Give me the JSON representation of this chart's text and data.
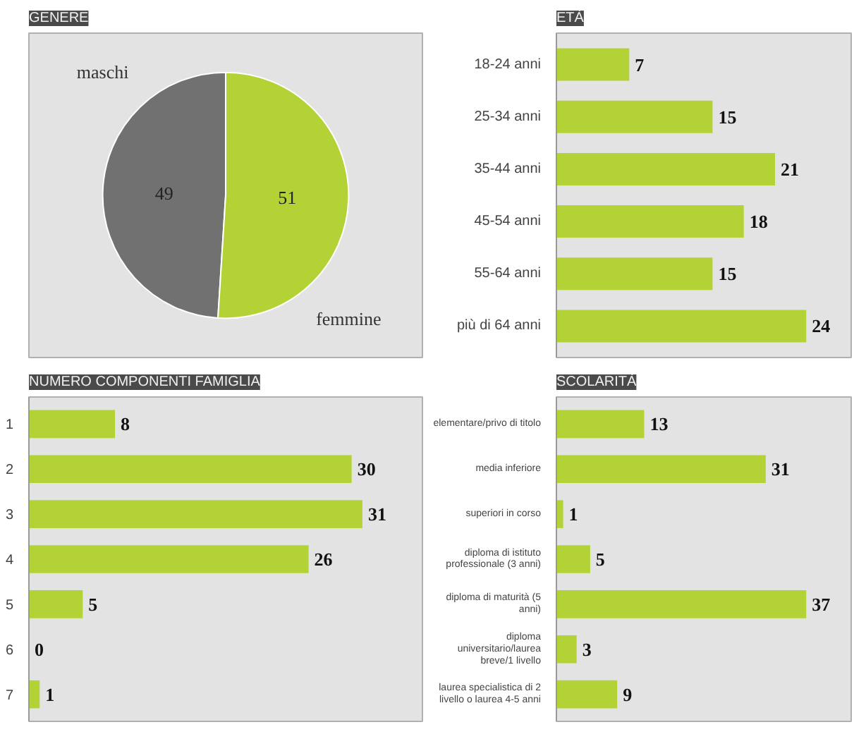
{
  "chart_data": [
    {
      "type": "pie",
      "title": "GENERE",
      "categories": [
        "maschi",
        "femmine"
      ],
      "values": [
        49,
        51
      ],
      "colors": [
        "#717171",
        "#b3d235"
      ],
      "data_labels": true,
      "legend": false
    },
    {
      "type": "bar",
      "title": "ETÀ",
      "orientation": "horizontal",
      "categories": [
        "18-24 anni",
        "25-34 anni",
        "35-44 anni",
        "45-54 anni",
        "55-64 anni",
        "più di 64 anni"
      ],
      "values": [
        7,
        15,
        21,
        18,
        15,
        24
      ],
      "color": "#b3d235",
      "data_labels": true,
      "grid": false,
      "tick_labels": "y"
    },
    {
      "type": "bar",
      "title": "NUMERO COMPONENTI FAMIGLIA",
      "orientation": "horizontal",
      "categories": [
        "1",
        "2",
        "3",
        "4",
        "5",
        "6",
        "7"
      ],
      "values": [
        8,
        30,
        31,
        26,
        5,
        0,
        1
      ],
      "color": "#b3d235",
      "data_labels": true,
      "grid": false,
      "tick_labels": "y"
    },
    {
      "type": "bar",
      "title": "SCOLARITÀ",
      "orientation": "horizontal",
      "categories": [
        "elementare/privo di titolo",
        "media inferiore",
        "superiori in corso",
        "diploma di istituto professionale (3 anni)",
        "diploma di maturità (5 anni)",
        "diploma universitario/laurea breve/1 livello",
        "laurea specialistica di 2 livello o laurea 4-5 anni"
      ],
      "values": [
        13,
        31,
        1,
        5,
        37,
        3,
        9
      ],
      "color": "#b3d235",
      "data_labels": true,
      "grid": false,
      "tick_labels": "y"
    }
  ]
}
